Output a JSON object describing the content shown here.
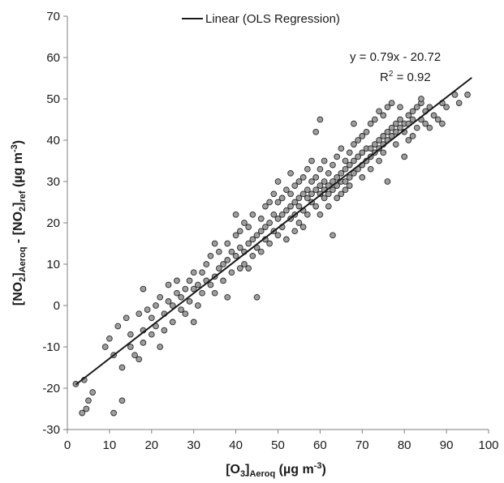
{
  "chart_data": {
    "type": "scatter",
    "title": "",
    "xlabel": {
      "main": "[O",
      "sub1": "3",
      "mid": "]",
      "sub2": "Aeroq",
      "unit_open": " (µg m",
      "unit_sup": "-3",
      "unit_close": ")"
    },
    "ylabel": {
      "part1": "[NO",
      "sub1": "2",
      "part2": "]",
      "sub2": "Aeroq",
      "part3": " - [NO",
      "sub3": "2",
      "part4": "]",
      "sub4": "ref",
      "unit_open": " (µg m",
      "unit_sup": "-3",
      "unit_close": ")"
    },
    "xlim": [
      0,
      100
    ],
    "ylim": [
      -30,
      70
    ],
    "xticks": [
      0,
      10,
      20,
      30,
      40,
      50,
      60,
      70,
      80,
      90,
      100
    ],
    "yticks": [
      -30,
      -20,
      -10,
      0,
      10,
      20,
      30,
      40,
      50,
      60,
      70
    ],
    "grid": false,
    "legend": {
      "position": "top",
      "label": "Linear (OLS Regression)"
    },
    "annotations": {
      "equation": "y = 0.79x - 20.72",
      "r2_prefix": "R",
      "r2_sup": "2",
      "r2_suffix": " = 0.92"
    },
    "trendline": {
      "slope": 0.79,
      "intercept": -20.72,
      "x_range": [
        2,
        96
      ],
      "color": "#1a1a1a"
    },
    "marker": {
      "fill": "#9e9e9e",
      "edge": "#2b2b2b"
    },
    "series": [
      {
        "points": [
          [
            2,
            -19
          ],
          [
            4,
            -18
          ],
          [
            3.5,
            -26
          ],
          [
            4.5,
            -25
          ],
          [
            5,
            -23
          ],
          [
            6,
            -21
          ],
          [
            9,
            -10
          ],
          [
            10,
            -8
          ],
          [
            11,
            -26
          ],
          [
            11,
            -12
          ],
          [
            12,
            -5
          ],
          [
            13,
            -23
          ],
          [
            13,
            -15
          ],
          [
            14,
            -3
          ],
          [
            15,
            -10
          ],
          [
            15,
            -7
          ],
          [
            16,
            -12
          ],
          [
            17,
            -2
          ],
          [
            17,
            -13
          ],
          [
            18,
            4
          ],
          [
            18,
            -6
          ],
          [
            18,
            -9
          ],
          [
            19,
            -1
          ],
          [
            20,
            -3
          ],
          [
            20,
            -7
          ],
          [
            21,
            0
          ],
          [
            21,
            -5
          ],
          [
            22,
            2
          ],
          [
            22,
            -10
          ],
          [
            23,
            -2
          ],
          [
            23,
            -6
          ],
          [
            24,
            1
          ],
          [
            24,
            5
          ],
          [
            25,
            0
          ],
          [
            25,
            -4
          ],
          [
            26,
            3
          ],
          [
            26,
            6
          ],
          [
            27,
            2
          ],
          [
            27,
            -1
          ],
          [
            28,
            4
          ],
          [
            28,
            -2
          ],
          [
            29,
            1
          ],
          [
            29,
            6
          ],
          [
            30,
            4
          ],
          [
            30,
            8
          ],
          [
            30,
            -4
          ],
          [
            31,
            5
          ],
          [
            31,
            0
          ],
          [
            32,
            3
          ],
          [
            32,
            8
          ],
          [
            33,
            6
          ],
          [
            33,
            10
          ],
          [
            34,
            5
          ],
          [
            34,
            12
          ],
          [
            35,
            7
          ],
          [
            35,
            3
          ],
          [
            35,
            15
          ],
          [
            36,
            9
          ],
          [
            36,
            13
          ],
          [
            37,
            6
          ],
          [
            37,
            10
          ],
          [
            38,
            11
          ],
          [
            38,
            15
          ],
          [
            38,
            2
          ],
          [
            39,
            8
          ],
          [
            39,
            13
          ],
          [
            40,
            12
          ],
          [
            40,
            17
          ],
          [
            40,
            22
          ],
          [
            41,
            9
          ],
          [
            41,
            14
          ],
          [
            41,
            18
          ],
          [
            42,
            13
          ],
          [
            42,
            20
          ],
          [
            42,
            10
          ],
          [
            43,
            15
          ],
          [
            43,
            19
          ],
          [
            43,
            9
          ],
          [
            44,
            16
          ],
          [
            44,
            12
          ],
          [
            44,
            22
          ],
          [
            45,
            17
          ],
          [
            45,
            14
          ],
          [
            45,
            2
          ],
          [
            46,
            18
          ],
          [
            46,
            21
          ],
          [
            46,
            13
          ],
          [
            47,
            19
          ],
          [
            47,
            24
          ],
          [
            47,
            16
          ],
          [
            48,
            20
          ],
          [
            48,
            25
          ],
          [
            48,
            15
          ],
          [
            49,
            18
          ],
          [
            49,
            22
          ],
          [
            49,
            27
          ],
          [
            50,
            21
          ],
          [
            50,
            25
          ],
          [
            50,
            17
          ],
          [
            50,
            30
          ],
          [
            51,
            22
          ],
          [
            51,
            26
          ],
          [
            51,
            19
          ],
          [
            52,
            23
          ],
          [
            52,
            28
          ],
          [
            52,
            16
          ],
          [
            53,
            24
          ],
          [
            53,
            27
          ],
          [
            53,
            21
          ],
          [
            53,
            32
          ],
          [
            54,
            25
          ],
          [
            54,
            22
          ],
          [
            54,
            29
          ],
          [
            54,
            18
          ],
          [
            55,
            26
          ],
          [
            55,
            24
          ],
          [
            55,
            30
          ],
          [
            55,
            20
          ],
          [
            56,
            27
          ],
          [
            56,
            23
          ],
          [
            56,
            31
          ],
          [
            56,
            19
          ],
          [
            57,
            26
          ],
          [
            57,
            28
          ],
          [
            57,
            33
          ],
          [
            57,
            22
          ],
          [
            58,
            27
          ],
          [
            58,
            25
          ],
          [
            58,
            30
          ],
          [
            58,
            35
          ],
          [
            59,
            28
          ],
          [
            59,
            24
          ],
          [
            59,
            31
          ],
          [
            59,
            42
          ],
          [
            60,
            27
          ],
          [
            60,
            29
          ],
          [
            60,
            33
          ],
          [
            60,
            45
          ],
          [
            60,
            22
          ],
          [
            61,
            28
          ],
          [
            61,
            30
          ],
          [
            61,
            26
          ],
          [
            61,
            35
          ],
          [
            62,
            29
          ],
          [
            62,
            27
          ],
          [
            62,
            32
          ],
          [
            62,
            24
          ],
          [
            63,
            30
          ],
          [
            63,
            28
          ],
          [
            63,
            34
          ],
          [
            63,
            17
          ],
          [
            64,
            31
          ],
          [
            64,
            29
          ],
          [
            64,
            36
          ],
          [
            64,
            26
          ],
          [
            65,
            32
          ],
          [
            65,
            30
          ],
          [
            65,
            38
          ],
          [
            65,
            27
          ],
          [
            66,
            33
          ],
          [
            66,
            30
          ],
          [
            66,
            35
          ],
          [
            66,
            28
          ],
          [
            67,
            34
          ],
          [
            67,
            31
          ],
          [
            67,
            37
          ],
          [
            67,
            29
          ],
          [
            68,
            35
          ],
          [
            68,
            32
          ],
          [
            68,
            39
          ],
          [
            68,
            44
          ],
          [
            69,
            36
          ],
          [
            69,
            33
          ],
          [
            69,
            40
          ],
          [
            70,
            37
          ],
          [
            70,
            34
          ],
          [
            70,
            41
          ],
          [
            70,
            31
          ],
          [
            71,
            38
          ],
          [
            71,
            35
          ],
          [
            71,
            42
          ],
          [
            72,
            38
          ],
          [
            72,
            36
          ],
          [
            72,
            44
          ],
          [
            72,
            33
          ],
          [
            73,
            39
          ],
          [
            73,
            37
          ],
          [
            73,
            45
          ],
          [
            74,
            40
          ],
          [
            74,
            38
          ],
          [
            74,
            47
          ],
          [
            74,
            35
          ],
          [
            75,
            41
          ],
          [
            75,
            39
          ],
          [
            75,
            46
          ],
          [
            75,
            37
          ],
          [
            76,
            42
          ],
          [
            76,
            40
          ],
          [
            76,
            48
          ],
          [
            76,
            30
          ],
          [
            77,
            43
          ],
          [
            77,
            41
          ],
          [
            77,
            49
          ],
          [
            78,
            44
          ],
          [
            78,
            42
          ],
          [
            78,
            39
          ],
          [
            79,
            45
          ],
          [
            79,
            43
          ],
          [
            79,
            48
          ],
          [
            80,
            44
          ],
          [
            80,
            42
          ],
          [
            80,
            36
          ],
          [
            81,
            46
          ],
          [
            81,
            44
          ],
          [
            81,
            40
          ],
          [
            82,
            47
          ],
          [
            82,
            45
          ],
          [
            82,
            41
          ],
          [
            83,
            48
          ],
          [
            83,
            43
          ],
          [
            84,
            49
          ],
          [
            84,
            45
          ],
          [
            84,
            50
          ],
          [
            85,
            47
          ],
          [
            85,
            44
          ],
          [
            86,
            48
          ],
          [
            86,
            43
          ],
          [
            87,
            46
          ],
          [
            88,
            45
          ],
          [
            89,
            49
          ],
          [
            89,
            44
          ],
          [
            90,
            48
          ],
          [
            92,
            51
          ],
          [
            93,
            49
          ],
          [
            95,
            51
          ]
        ]
      }
    ]
  }
}
